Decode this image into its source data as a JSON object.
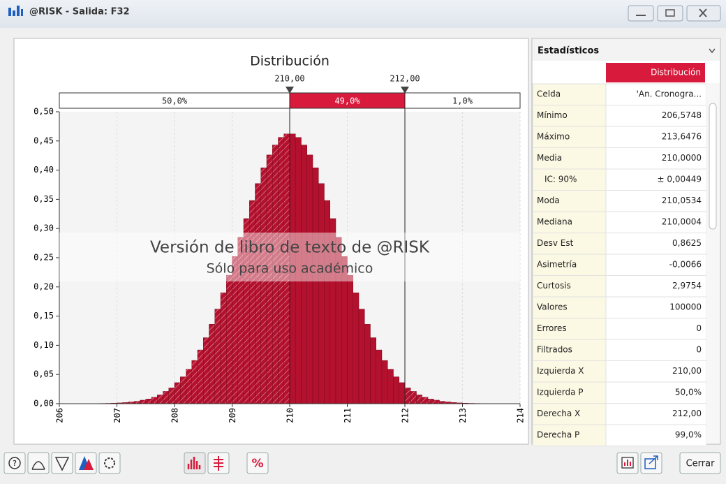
{
  "window": {
    "title": "@RISK - Salida: F32",
    "close_button": "Cerrar"
  },
  "chart_data": {
    "type": "histogram",
    "title": "Distribución",
    "bins": [
      206.5,
      206.6,
      206.7,
      206.8,
      206.9,
      207.0,
      207.1,
      207.2,
      207.3,
      207.4,
      207.5,
      207.6,
      207.7,
      207.8,
      207.9,
      208.0,
      208.1,
      208.2,
      208.3,
      208.4,
      208.5,
      208.6,
      208.7,
      208.8,
      208.9,
      209.0,
      209.1,
      209.2,
      209.3,
      209.4,
      209.5,
      209.6,
      209.7,
      209.8,
      209.9,
      210.0,
      210.1,
      210.2,
      210.3,
      210.4,
      210.5,
      210.6,
      210.7,
      210.8,
      210.9,
      211.0,
      211.1,
      211.2,
      211.3,
      211.4,
      211.5,
      211.6,
      211.7,
      211.8,
      211.9,
      212.0,
      212.1,
      212.2,
      212.3,
      212.4,
      212.5,
      212.6,
      212.7,
      212.8,
      212.9,
      213.0,
      213.1,
      213.2,
      213.3,
      213.4,
      213.5,
      213.6,
      213.7
    ],
    "values": [
      0.0002,
      0.0002,
      0.0004,
      0.0006,
      0.0009,
      0.0013,
      0.002,
      0.003,
      0.004,
      0.006,
      0.008,
      0.011,
      0.015,
      0.021,
      0.027,
      0.036,
      0.046,
      0.059,
      0.074,
      0.092,
      0.113,
      0.136,
      0.162,
      0.19,
      0.22,
      0.252,
      0.285,
      0.317,
      0.348,
      0.377,
      0.404,
      0.426,
      0.443,
      0.456,
      0.462,
      0.462,
      0.456,
      0.443,
      0.426,
      0.404,
      0.377,
      0.348,
      0.317,
      0.285,
      0.252,
      0.22,
      0.19,
      0.162,
      0.136,
      0.113,
      0.092,
      0.074,
      0.059,
      0.046,
      0.036,
      0.027,
      0.021,
      0.015,
      0.011,
      0.008,
      0.006,
      0.004,
      0.003,
      0.002,
      0.0013,
      0.0009,
      0.0006,
      0.0004,
      0.0002,
      0.0002,
      0.0001,
      0.0001
    ],
    "color": "#b3112d",
    "xlim": [
      206,
      214
    ],
    "xticks": [
      206,
      207,
      208,
      209,
      210,
      211,
      212,
      213,
      214
    ],
    "ylim": [
      0,
      0.5
    ],
    "yticks": [
      {
        "value": 0,
        "label": "0,00"
      },
      {
        "value": 0.05,
        "label": "0,05"
      },
      {
        "value": 0.1,
        "label": "0,10"
      },
      {
        "value": 0.15,
        "label": "0,15"
      },
      {
        "value": 0.2,
        "label": "0,20"
      },
      {
        "value": 0.25,
        "label": "0,25"
      },
      {
        "value": 0.3,
        "label": "0,30"
      },
      {
        "value": 0.35,
        "label": "0,35"
      },
      {
        "value": 0.4,
        "label": "0,40"
      },
      {
        "value": 0.45,
        "label": "0,45"
      },
      {
        "value": 0.5,
        "label": "0,50"
      }
    ],
    "grid": true,
    "delimiters": [
      {
        "value": 210,
        "label": "210,00"
      },
      {
        "value": 212,
        "label": "212,00"
      }
    ],
    "regions": [
      {
        "value": 50,
        "label": "50,0%"
      },
      {
        "value": 49,
        "label": "49,0%"
      },
      {
        "value": 1,
        "label": "1,0%"
      }
    ],
    "annotations": [
      "Versión de libro de texto de @RISK",
      "Sólo para uso académico"
    ]
  },
  "stats": {
    "title": "Estadísticos",
    "column": "Distribución",
    "rows": [
      [
        "Celda",
        "'An. Cronogra..."
      ],
      [
        "Mínimo",
        "206,5748"
      ],
      [
        "Máximo",
        "213,6476"
      ],
      [
        "Media",
        "210,0000"
      ],
      [
        "IC: 90%",
        "± 0,00449"
      ],
      [
        "Moda",
        "210,0534"
      ],
      [
        "Mediana",
        "210,0004"
      ],
      [
        "Desv Est",
        "0,8625"
      ],
      [
        "Asimetría",
        "-0,0066"
      ],
      [
        "Curtosis",
        "2,9754"
      ],
      [
        "Valores",
        "100000"
      ],
      [
        "Errores",
        "0"
      ],
      [
        "Filtrados",
        "0"
      ],
      [
        "Izquierda X",
        "210,00"
      ],
      [
        "Izquierda P",
        "50,0%"
      ],
      [
        "Derecha X",
        "212,00"
      ],
      [
        "Derecha P",
        "99,0%"
      ]
    ]
  }
}
